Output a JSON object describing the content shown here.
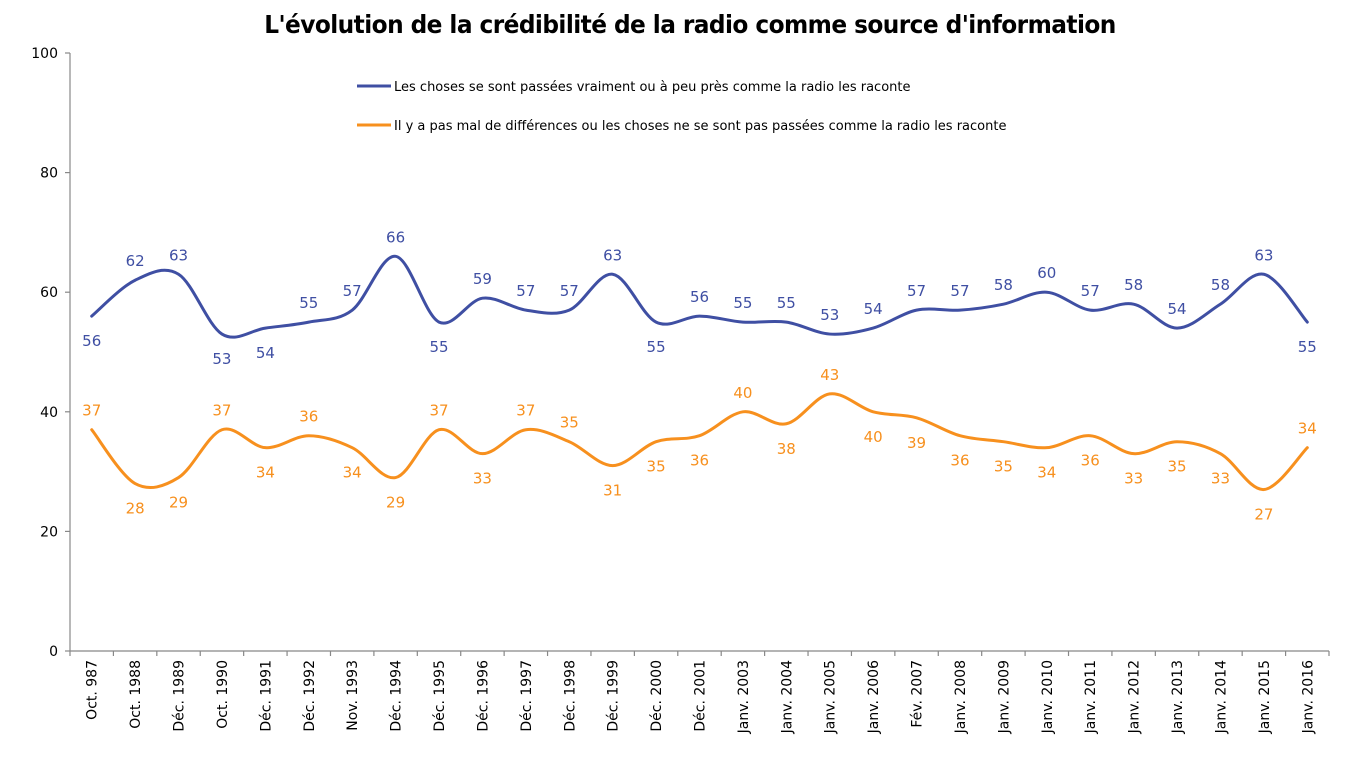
{
  "chart_data": {
    "type": "line",
    "title": "L'évolution de la crédibilité de la radio comme source d'information",
    "xlabel": "",
    "ylabel": "",
    "ylim": [
      0,
      100
    ],
    "yticks": [
      0,
      20,
      40,
      60,
      80,
      100
    ],
    "grid": false,
    "legend_position": "top-center",
    "smooth": true,
    "categories": [
      "Oct. 987",
      "Oct. 1988",
      "Déc. 1989",
      "Oct. 1990",
      "Déc. 1991",
      "Déc. 1992",
      "Nov. 1993",
      "Déc. 1994",
      "Déc. 1995",
      "Déc. 1996",
      "Déc. 1997",
      "Déc. 1998",
      "Déc. 1999",
      "Déc. 2000",
      "Déc. 2001",
      "Janv. 2003",
      "Janv. 2004",
      "Janv. 2005",
      "Janv. 2006",
      "Fév. 2007",
      "Janv. 2008",
      "Janv. 2009",
      "Janv. 2010",
      "Janv. 2011",
      "Janv. 2012",
      "Janv. 2013",
      "Janv. 2014",
      "Janv. 2015",
      "Janv. 2016"
    ],
    "series": [
      {
        "name": "Les choses se sont passées vraiment ou à peu près comme la radio les raconte",
        "color": "#3f4fa3",
        "values": [
          56,
          62,
          63,
          53,
          54,
          55,
          57,
          66,
          55,
          59,
          57,
          57,
          63,
          55,
          56,
          55,
          55,
          53,
          54,
          57,
          57,
          58,
          60,
          57,
          58,
          54,
          58,
          63,
          55
        ],
        "label_position": [
          "below",
          "above",
          "above",
          "below",
          "below",
          "above",
          "above",
          "above",
          "below",
          "above",
          "above",
          "above",
          "above",
          "below",
          "above",
          "above",
          "above",
          "above",
          "above",
          "above",
          "above",
          "above",
          "above",
          "above",
          "above",
          "above",
          "above",
          "above",
          "below"
        ]
      },
      {
        "name": "Il y a pas mal de différences ou les choses ne se sont pas passées comme la radio les raconte",
        "color": "#f7901e",
        "values": [
          37,
          28,
          29,
          37,
          34,
          36,
          34,
          29,
          37,
          33,
          37,
          35,
          31,
          35,
          36,
          40,
          38,
          43,
          40,
          39,
          36,
          35,
          34,
          36,
          33,
          35,
          33,
          27,
          34
        ],
        "label_position": [
          "above",
          "below",
          "below",
          "above",
          "below",
          "above",
          "below",
          "below",
          "above",
          "below",
          "above",
          "above",
          "below",
          "below",
          "below",
          "above",
          "below",
          "above",
          "below",
          "below",
          "below",
          "below",
          "below",
          "below",
          "below",
          "below",
          "below",
          "below",
          "above"
        ]
      }
    ]
  }
}
